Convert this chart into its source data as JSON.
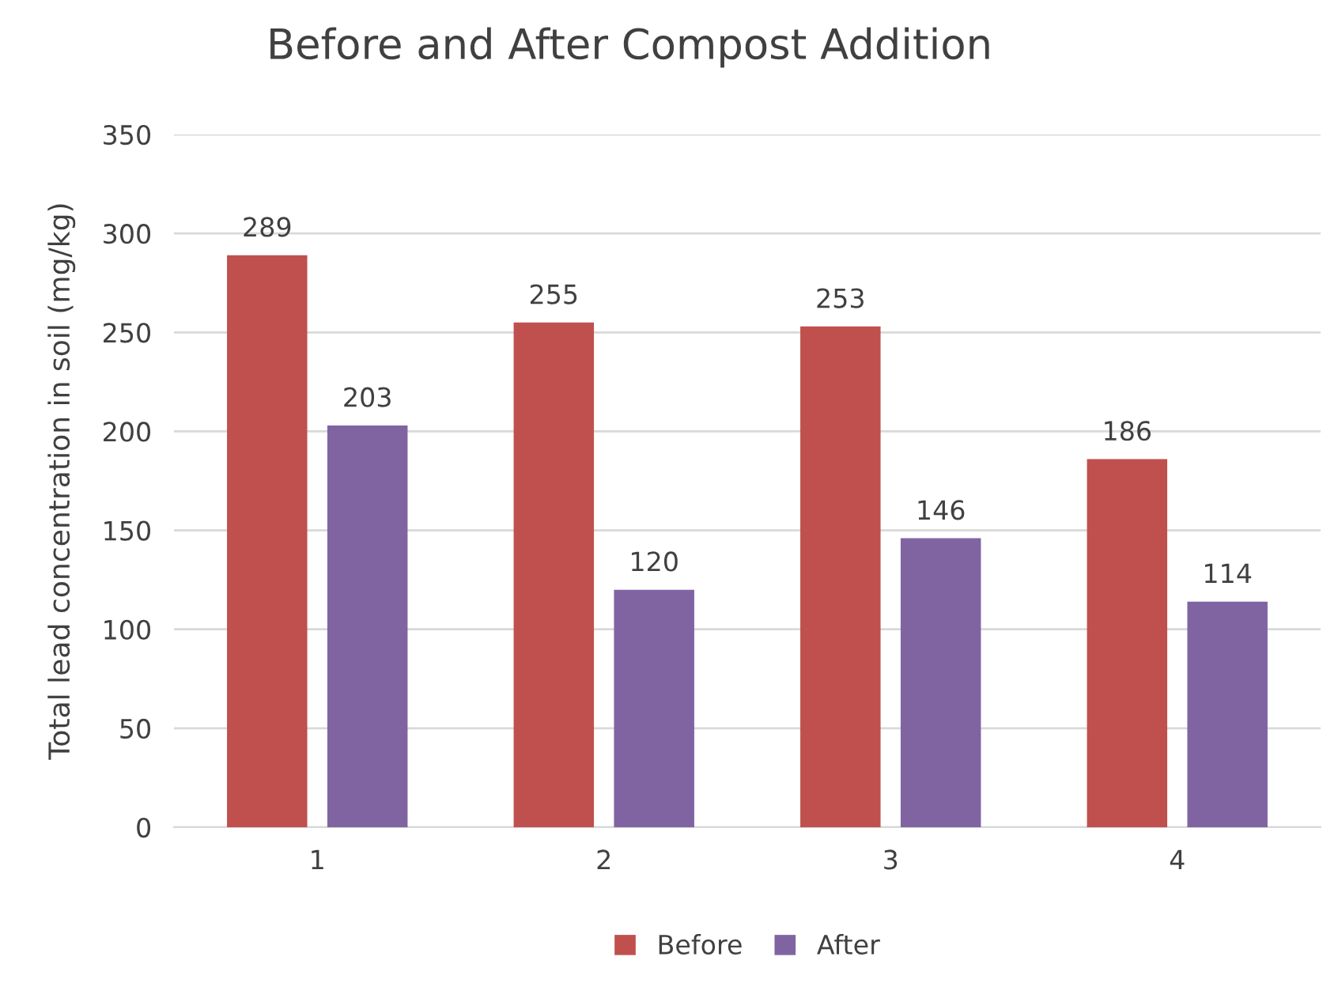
{
  "chart_data": {
    "type": "bar",
    "title": "Before and After Compost Addition",
    "ylabel": "Total lead concentration in soil (mg/kg)",
    "categories": [
      "1",
      "2",
      "3",
      "4"
    ],
    "series": [
      {
        "name": "Before",
        "color": "#c0504d",
        "values": [
          289,
          255,
          253,
          186
        ]
      },
      {
        "name": "After",
        "color": "#8064a2",
        "values": [
          203,
          120,
          146,
          114
        ]
      }
    ],
    "ylim": [
      0,
      350
    ],
    "yticks": [
      0,
      50,
      100,
      150,
      200,
      250,
      300,
      350
    ],
    "grid": "y",
    "legend": "bottom",
    "data_labels": true
  }
}
